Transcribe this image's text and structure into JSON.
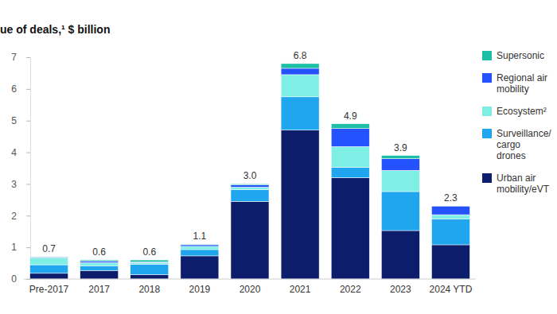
{
  "chart_data": {
    "type": "bar",
    "title": "ue of deals,¹ $ billion",
    "stacked": true,
    "orientation": "vertical",
    "grid": false,
    "legend": "right",
    "data_labels": false,
    "categories": [
      "Pre-2017",
      "2017",
      "2018",
      "2019",
      "2020",
      "2021",
      "2022",
      "2023",
      "2024 YTD"
    ],
    "series": [
      {
        "name": "Urban air mobility/eVT",
        "color": "#0b1d6b",
        "values": [
          0.18,
          0.27,
          0.14,
          0.73,
          2.45,
          4.7,
          3.2,
          1.53,
          1.08
        ]
      },
      {
        "name": "Surveillance/cargo drones",
        "color": "#1fa6ee",
        "values": [
          0.27,
          0.15,
          0.33,
          0.2,
          0.37,
          1.05,
          0.33,
          1.23,
          0.82
        ]
      },
      {
        "name": "Ecosystem²",
        "color": "#7fefe5",
        "values": [
          0.22,
          0.1,
          0.05,
          0.1,
          0.08,
          0.7,
          0.65,
          0.67,
          0.13
        ]
      },
      {
        "name": "Regional air mobility",
        "color": "#2452ff",
        "values": [
          0.02,
          0.05,
          0.02,
          0.05,
          0.07,
          0.2,
          0.57,
          0.37,
          0.27
        ]
      },
      {
        "name": "Supersonic",
        "color": "#1dbfa6",
        "values": [
          0.01,
          0.03,
          0.06,
          0.02,
          0.03,
          0.15,
          0.15,
          0.1,
          0
        ]
      }
    ],
    "totals": [
      0.7,
      0.6,
      0.6,
      1.1,
      3.0,
      6.8,
      4.9,
      3.9,
      2.3
    ],
    "total_labels": [
      "0.7",
      "0.6",
      "0.6",
      "1.1",
      "3.0",
      "6.8",
      "4.9",
      "3.9",
      "2.3"
    ],
    "ylim": [
      0,
      7
    ],
    "yticks": [
      0,
      1,
      2,
      3,
      4,
      5,
      6,
      7
    ]
  }
}
